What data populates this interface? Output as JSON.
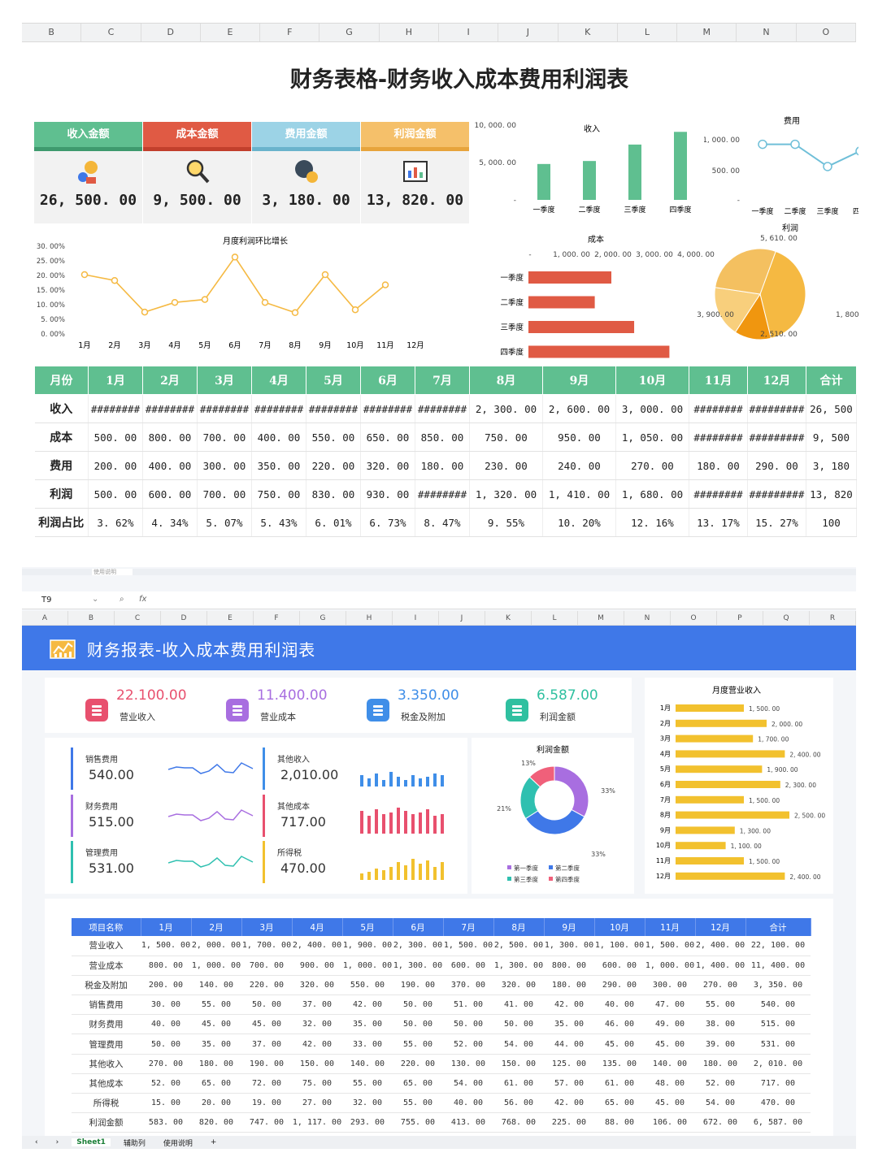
{
  "sheet1": {
    "columns": [
      "B",
      "C",
      "D",
      "E",
      "F",
      "G",
      "H",
      "I",
      "J",
      "K",
      "L",
      "M",
      "N",
      "O"
    ],
    "title": "财务表格-财务收入成本费用利润表",
    "kpis": [
      {
        "label": "收入金额",
        "value": "26, 500. 00",
        "color": "#5fbf90",
        "icon": "money-people-icon"
      },
      {
        "label": "成本金额",
        "value": "9, 500. 00",
        "color": "#e05a44",
        "icon": "magnifier-icon"
      },
      {
        "label": "费用金额",
        "value": "3, 180. 00",
        "color": "#9cd3e6",
        "icon": "coins-clock-icon"
      },
      {
        "label": "利润金额",
        "value": "13, 820. 00",
        "color": "#f5c06a",
        "icon": "chart-board-icon"
      }
    ],
    "charts": {
      "income": {
        "type": "bar",
        "title": "收入",
        "categories": [
          "一季度",
          "二季度",
          "三季度",
          "四季度"
        ],
        "values": [
          4800,
          5200,
          7400,
          9100
        ],
        "yticks": [
          "10, 000. 00",
          "5, 000. 00",
          "-"
        ]
      },
      "expense": {
        "type": "line",
        "title": "费用",
        "categories": [
          "一季度",
          "二季度",
          "三季度",
          "四季"
        ],
        "values": [
          900,
          900,
          540,
          790
        ],
        "yticks": [
          "1, 000. 00",
          "500. 00",
          "-"
        ]
      },
      "monthly": {
        "type": "line",
        "title": "月度利润环比增长",
        "categories": [
          "1月",
          "2月",
          "3月",
          "4月",
          "5月",
          "6月",
          "7月",
          "8月",
          "9月",
          "10月",
          "11月",
          "12月"
        ],
        "values": [
          20,
          18,
          7.2,
          10.5,
          11.5,
          26,
          10.5,
          7,
          20,
          8,
          16.5,
          null
        ],
        "yticks": [
          "30. 00%",
          "25. 00%",
          "20. 00%",
          "15. 00%",
          "10. 00%",
          "5. 00%",
          "0. 00%"
        ]
      },
      "cost": {
        "type": "hbar",
        "title": "成本",
        "categories": [
          "一季度",
          "二季度",
          "三季度",
          "四季度"
        ],
        "values": [
          2000,
          1600,
          2550,
          3400
        ],
        "xticks": [
          "-",
          "1, 000. 00",
          "2, 000. 00",
          "3, 000. 00",
          "4, 000. 00"
        ]
      },
      "profit": {
        "type": "pie",
        "title": "利润",
        "values": [
          5610,
          1800,
          2510,
          3900
        ],
        "labels": [
          "5, 610. 00",
          "1, 800. 00",
          "2, 510. 00",
          "3, 900. 00"
        ]
      }
    },
    "table": {
      "headers": [
        "月份",
        "1月",
        "2月",
        "3月",
        "4月",
        "5月",
        "6月",
        "7月",
        "8月",
        "9月",
        "10月",
        "11月",
        "12月",
        "合计"
      ],
      "rows": [
        [
          "收入",
          "########",
          "########",
          "########",
          "########",
          "########",
          "########",
          "########",
          "2, 300. 00",
          "2, 600. 00",
          "3, 000. 00",
          "########",
          "#########",
          "26, 500"
        ],
        [
          "成本",
          "500. 00",
          "800. 00",
          "700. 00",
          "400. 00",
          "550. 00",
          "650. 00",
          "850. 00",
          "750. 00",
          "950. 00",
          "1, 050. 00",
          "########",
          "#########",
          "9, 500"
        ],
        [
          "费用",
          "200. 00",
          "400. 00",
          "300. 00",
          "350. 00",
          "220. 00",
          "320. 00",
          "180. 00",
          "230. 00",
          "240. 00",
          "270. 00",
          "180. 00",
          "290. 00",
          "3, 180"
        ],
        [
          "利润",
          "500. 00",
          "600. 00",
          "700. 00",
          "750. 00",
          "830. 00",
          "930. 00",
          "########",
          "1, 320. 00",
          "1, 410. 00",
          "1, 680. 00",
          "########",
          "#########",
          "13, 820"
        ],
        [
          "利润占比",
          "3. 62%",
          "4. 34%",
          "5. 07%",
          "5. 43%",
          "6. 01%",
          "6. 73%",
          "8. 47%",
          "9. 55%",
          "10. 20%",
          "12. 16%",
          "13. 17%",
          "15. 27%",
          "100"
        ]
      ]
    }
  },
  "sheet2": {
    "cell_ref": "T9",
    "fx": "fx",
    "columns": [
      "A",
      "B",
      "C",
      "D",
      "E",
      "F",
      "G",
      "H",
      "I",
      "J",
      "K",
      "L",
      "M",
      "N",
      "O",
      "P",
      "Q",
      "R"
    ],
    "title": "财务报表-收入成本费用利润表",
    "kpis": [
      {
        "value": "22.100.00",
        "label": "营业收入",
        "color": "#e8506e"
      },
      {
        "value": "11.400.00",
        "label": "营业成本",
        "color": "#a86ee0"
      },
      {
        "value": "3.350.00",
        "label": "税金及附加",
        "color": "#3f8ee8"
      },
      {
        "value": "6.587.00",
        "label": "利润金额",
        "color": "#2fc0a0"
      }
    ],
    "minis": [
      {
        "label": "销售费用",
        "value": "540.00",
        "color": "#3f78e8"
      },
      {
        "label": "财务费用",
        "value": "515.00",
        "color": "#a86ee0"
      },
      {
        "label": "管理费用",
        "value": "531.00",
        "color": "#2fc0b0"
      },
      {
        "label": "其他收入",
        "value": "2,010.00",
        "color": "#3f8ee8"
      },
      {
        "label": "其他成本",
        "value": "717.00",
        "color": "#e8506e"
      },
      {
        "label": "所得税",
        "value": "470.00",
        "color": "#f2c12e"
      }
    ],
    "donut": {
      "title": "利润金额",
      "values": [
        33,
        33,
        21,
        13
      ],
      "labels": [
        "33%",
        "33%",
        "21%",
        "13%"
      ],
      "legend": [
        "第一季度",
        "第二季度",
        "第三季度",
        "第四季度"
      ],
      "colors": [
        "#a86ee0",
        "#3f78e8",
        "#2fc0b0",
        "#f0607a"
      ]
    },
    "monthly_bar": {
      "title": "月度营业收入",
      "categories": [
        "1月",
        "2月",
        "3月",
        "4月",
        "5月",
        "6月",
        "7月",
        "8月",
        "9月",
        "10月",
        "11月",
        "12月"
      ],
      "values": [
        1500,
        2000,
        1700,
        2400,
        1900,
        2300,
        1500,
        2500,
        1300,
        1100,
        1500,
        2400
      ],
      "labels": [
        "1, 500. 00",
        "2, 000. 00",
        "1, 700. 00",
        "2, 400. 00",
        "1, 900. 00",
        "2, 300. 00",
        "1, 500. 00",
        "2, 500. 00",
        "1, 300. 00",
        "1, 100. 00",
        "1, 500. 00",
        "2, 400. 00"
      ]
    },
    "table": {
      "headers": [
        "项目名称",
        "1月",
        "2月",
        "3月",
        "4月",
        "5月",
        "6月",
        "7月",
        "8月",
        "9月",
        "10月",
        "11月",
        "12月",
        "合计"
      ],
      "rows": [
        [
          "营业收入",
          "1, 500. 00",
          "2, 000. 00",
          "1, 700. 00",
          "2, 400. 00",
          "1, 900. 00",
          "2, 300. 00",
          "1, 500. 00",
          "2, 500. 00",
          "1, 300. 00",
          "1, 100. 00",
          "1, 500. 00",
          "2, 400. 00",
          "22, 100. 00"
        ],
        [
          "营业成本",
          "800. 00",
          "1, 000. 00",
          "700. 00",
          "900. 00",
          "1, 000. 00",
          "1, 300. 00",
          "600. 00",
          "1, 300. 00",
          "800. 00",
          "600. 00",
          "1, 000. 00",
          "1, 400. 00",
          "11, 400. 00"
        ],
        [
          "税金及附加",
          "200. 00",
          "140. 00",
          "220. 00",
          "320. 00",
          "550. 00",
          "190. 00",
          "370. 00",
          "320. 00",
          "180. 00",
          "290. 00",
          "300. 00",
          "270. 00",
          "3, 350. 00"
        ],
        [
          "销售费用",
          "30. 00",
          "55. 00",
          "50. 00",
          "37. 00",
          "42. 00",
          "50. 00",
          "51. 00",
          "41. 00",
          "42. 00",
          "40. 00",
          "47. 00",
          "55. 00",
          "540. 00"
        ],
        [
          "财务费用",
          "40. 00",
          "45. 00",
          "45. 00",
          "32. 00",
          "35. 00",
          "50. 00",
          "50. 00",
          "50. 00",
          "35. 00",
          "46. 00",
          "49. 00",
          "38. 00",
          "515. 00"
        ],
        [
          "管理费用",
          "50. 00",
          "35. 00",
          "37. 00",
          "42. 00",
          "33. 00",
          "55. 00",
          "52. 00",
          "54. 00",
          "44. 00",
          "45. 00",
          "45. 00",
          "39. 00",
          "531. 00"
        ],
        [
          "其他收入",
          "270. 00",
          "180. 00",
          "190. 00",
          "150. 00",
          "140. 00",
          "220. 00",
          "130. 00",
          "150. 00",
          "125. 00",
          "135. 00",
          "140. 00",
          "180. 00",
          "2, 010. 00"
        ],
        [
          "其他成本",
          "52. 00",
          "65. 00",
          "72. 00",
          "75. 00",
          "55. 00",
          "65. 00",
          "54. 00",
          "61. 00",
          "57. 00",
          "61. 00",
          "48. 00",
          "52. 00",
          "717. 00"
        ],
        [
          "所得税",
          "15. 00",
          "20. 00",
          "19. 00",
          "27. 00",
          "32. 00",
          "55. 00",
          "40. 00",
          "56. 00",
          "42. 00",
          "65. 00",
          "45. 00",
          "54. 00",
          "470. 00"
        ],
        [
          "利润金额",
          "583. 00",
          "820. 00",
          "747. 00",
          "1, 117. 00",
          "293. 00",
          "755. 00",
          "413. 00",
          "768. 00",
          "225. 00",
          "88. 00",
          "106. 00",
          "672. 00",
          "6, 587. 00"
        ]
      ]
    },
    "tabs": [
      "Sheet1",
      "辅助列",
      "使用说明",
      "+"
    ],
    "tab_partial": [
      "使用说明"
    ]
  }
}
